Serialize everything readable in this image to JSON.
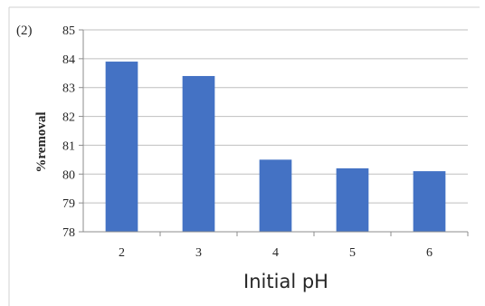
{
  "chart_data": {
    "type": "bar",
    "panel_label": "(2)",
    "categories": [
      "2",
      "3",
      "4",
      "5",
      "6"
    ],
    "values": [
      83.9,
      83.4,
      80.5,
      80.2,
      80.1
    ],
    "title": "",
    "xlabel": "Initial pH",
    "ylabel": "%removal",
    "ylim": [
      78,
      85
    ],
    "yticks": [
      "78",
      "79",
      "80",
      "81",
      "82",
      "83",
      "84",
      "85"
    ],
    "grid": true,
    "legend": "none",
    "bar_color": "#4472C4",
    "grid_color": "#BFBFBF",
    "axis_color": "#8C8C8C"
  }
}
